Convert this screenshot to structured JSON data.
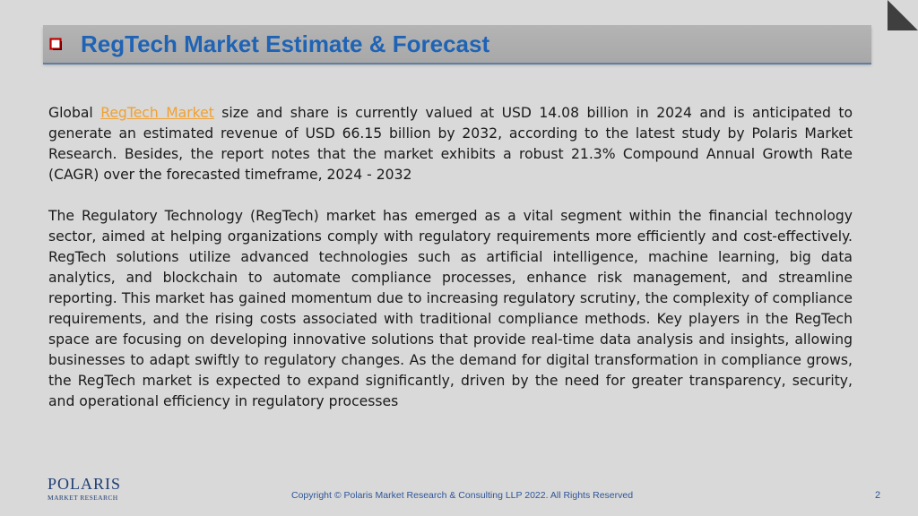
{
  "slide": {
    "title": "RegTech Market Estimate & Forecast",
    "colors": {
      "title": "#1f63b5",
      "bullet": "#c00000",
      "link": "#f0a030",
      "footer": "#2f5597"
    },
    "paragraph1": {
      "prefix": "Global ",
      "link": "RegTech Market",
      "suffix": " size and share is currently valued at USD 14.08 billion in 2024 and is anticipated to generate an estimated revenue of USD 66.15 billion by 2032, according to the latest study by Polaris Market Research. Besides, the report notes that the market exhibits a robust 21.3% Compound Annual Growth Rate (CAGR) over the forecasted timeframe, 2024 - 2032"
    },
    "paragraph2": "The Regulatory Technology (RegTech) market has emerged as a vital segment within the financial technology sector, aimed at helping organizations comply with regulatory requirements more efficiently and cost-effectively. RegTech solutions utilize advanced technologies such as artificial intelligence, machine learning, big data analytics, and blockchain to automate compliance processes, enhance risk management, and streamline reporting. This market has gained momentum due to increasing regulatory scrutiny, the complexity of compliance requirements, and the rising costs associated with traditional compliance methods. Key players in the RegTech space are focusing on developing innovative solutions that provide real-time data analysis and insights, allowing businesses to adapt swiftly to regulatory changes. As the demand for digital transformation in compliance grows, the RegTech market is expected to expand significantly, driven by the need for greater transparency, security, and operational efficiency in regulatory processes"
  },
  "logo": {
    "main": "POLARIS",
    "sub": "MARKET RESEARCH"
  },
  "footer": {
    "copyright": "Copyright © Polaris Market Research & Consulting LLP 2022. All Rights Reserved",
    "page_number": "2"
  }
}
